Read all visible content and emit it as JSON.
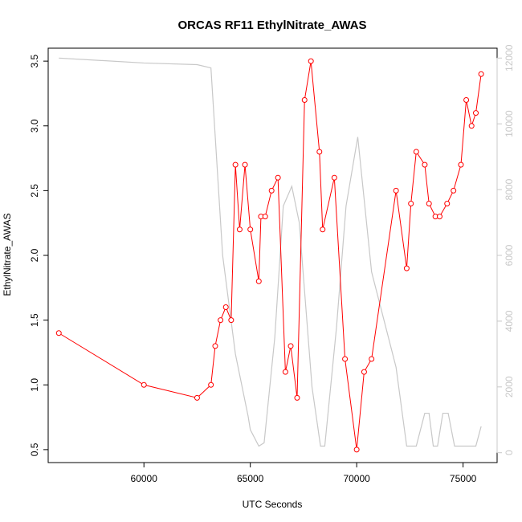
{
  "chart_data": {
    "type": "line",
    "title": "ORCAS RF11 EthylNitrate_AWAS",
    "xlabel": "UTC Seconds",
    "ylabel": "EthylNitrate_AWAS",
    "xlim": [
      55500,
      76600
    ],
    "ylim": [
      0.4,
      3.6
    ],
    "y2lim": [
      -300,
      12300
    ],
    "x_ticks": [
      60000,
      65000,
      70000,
      75000
    ],
    "y_ticks": [
      0.5,
      1.0,
      1.5,
      2.0,
      2.5,
      3.0,
      3.5
    ],
    "y2_ticks": [
      0,
      2000,
      4000,
      6000,
      8000,
      10000,
      12000
    ],
    "x_tick_labels": [
      "60000",
      "65000",
      "70000",
      "75000"
    ],
    "y_tick_labels": [
      "0.5",
      "1.0",
      "1.5",
      "2.0",
      "2.5",
      "3.0",
      "3.5"
    ],
    "y2_tick_labels": [
      "0",
      "2000",
      "4000",
      "6000",
      "8000",
      "10000",
      "12000"
    ],
    "grid": false,
    "colors": {
      "ethylnitrate": "#ff0000",
      "altitude": "#c8c8c8",
      "axes": "#000000"
    },
    "series": [
      {
        "axis": "left",
        "marker": "open-circle",
        "x": [
          56000,
          60000,
          62500,
          63150,
          63350,
          63600,
          63850,
          64100,
          64300,
          64500,
          64750,
          65000,
          65400,
          65500,
          65700,
          66000,
          66300,
          66650,
          66900,
          67200,
          67550,
          67850,
          68250,
          68400,
          68950,
          69450,
          70000,
          70350,
          70700,
          71850,
          72350,
          72550,
          72800,
          73200,
          73400,
          73700,
          73900,
          74250,
          74550,
          74900,
          75150,
          75400,
          75600,
          75850
        ],
        "y": [
          1.4,
          1.0,
          0.9,
          1.0,
          1.3,
          1.5,
          1.6,
          1.5,
          2.7,
          2.2,
          2.7,
          2.2,
          1.8,
          2.3,
          2.3,
          2.5,
          2.6,
          1.1,
          1.3,
          0.9,
          3.2,
          3.5,
          2.8,
          2.2,
          2.6,
          1.2,
          0.5,
          1.1,
          1.2,
          2.5,
          1.9,
          2.4,
          2.8,
          2.7,
          2.4,
          2.3,
          2.3,
          2.4,
          2.5,
          2.7,
          3.2,
          3.0,
          3.1,
          3.4
        ]
      },
      {
        "axis": "right",
        "marker": "none",
        "x": [
          56000,
          60000,
          62500,
          63150,
          63700,
          64300,
          64900,
          65000,
          65400,
          65650,
          66150,
          66550,
          66950,
          67300,
          67900,
          68300,
          68500,
          69050,
          69500,
          70050,
          70700,
          71850,
          72350,
          72800,
          73200,
          73400,
          73600,
          73800,
          74050,
          74300,
          74600,
          74800,
          75600,
          75850
        ],
        "y": [
          12000,
          11850,
          11800,
          11700,
          6000,
          3000,
          1100,
          700,
          200,
          300,
          3500,
          7500,
          8100,
          7000,
          2000,
          200,
          200,
          3800,
          7500,
          9600,
          5500,
          2600,
          200,
          200,
          1200,
          1200,
          200,
          200,
          1200,
          1200,
          200,
          200,
          200,
          800
        ]
      }
    ]
  }
}
